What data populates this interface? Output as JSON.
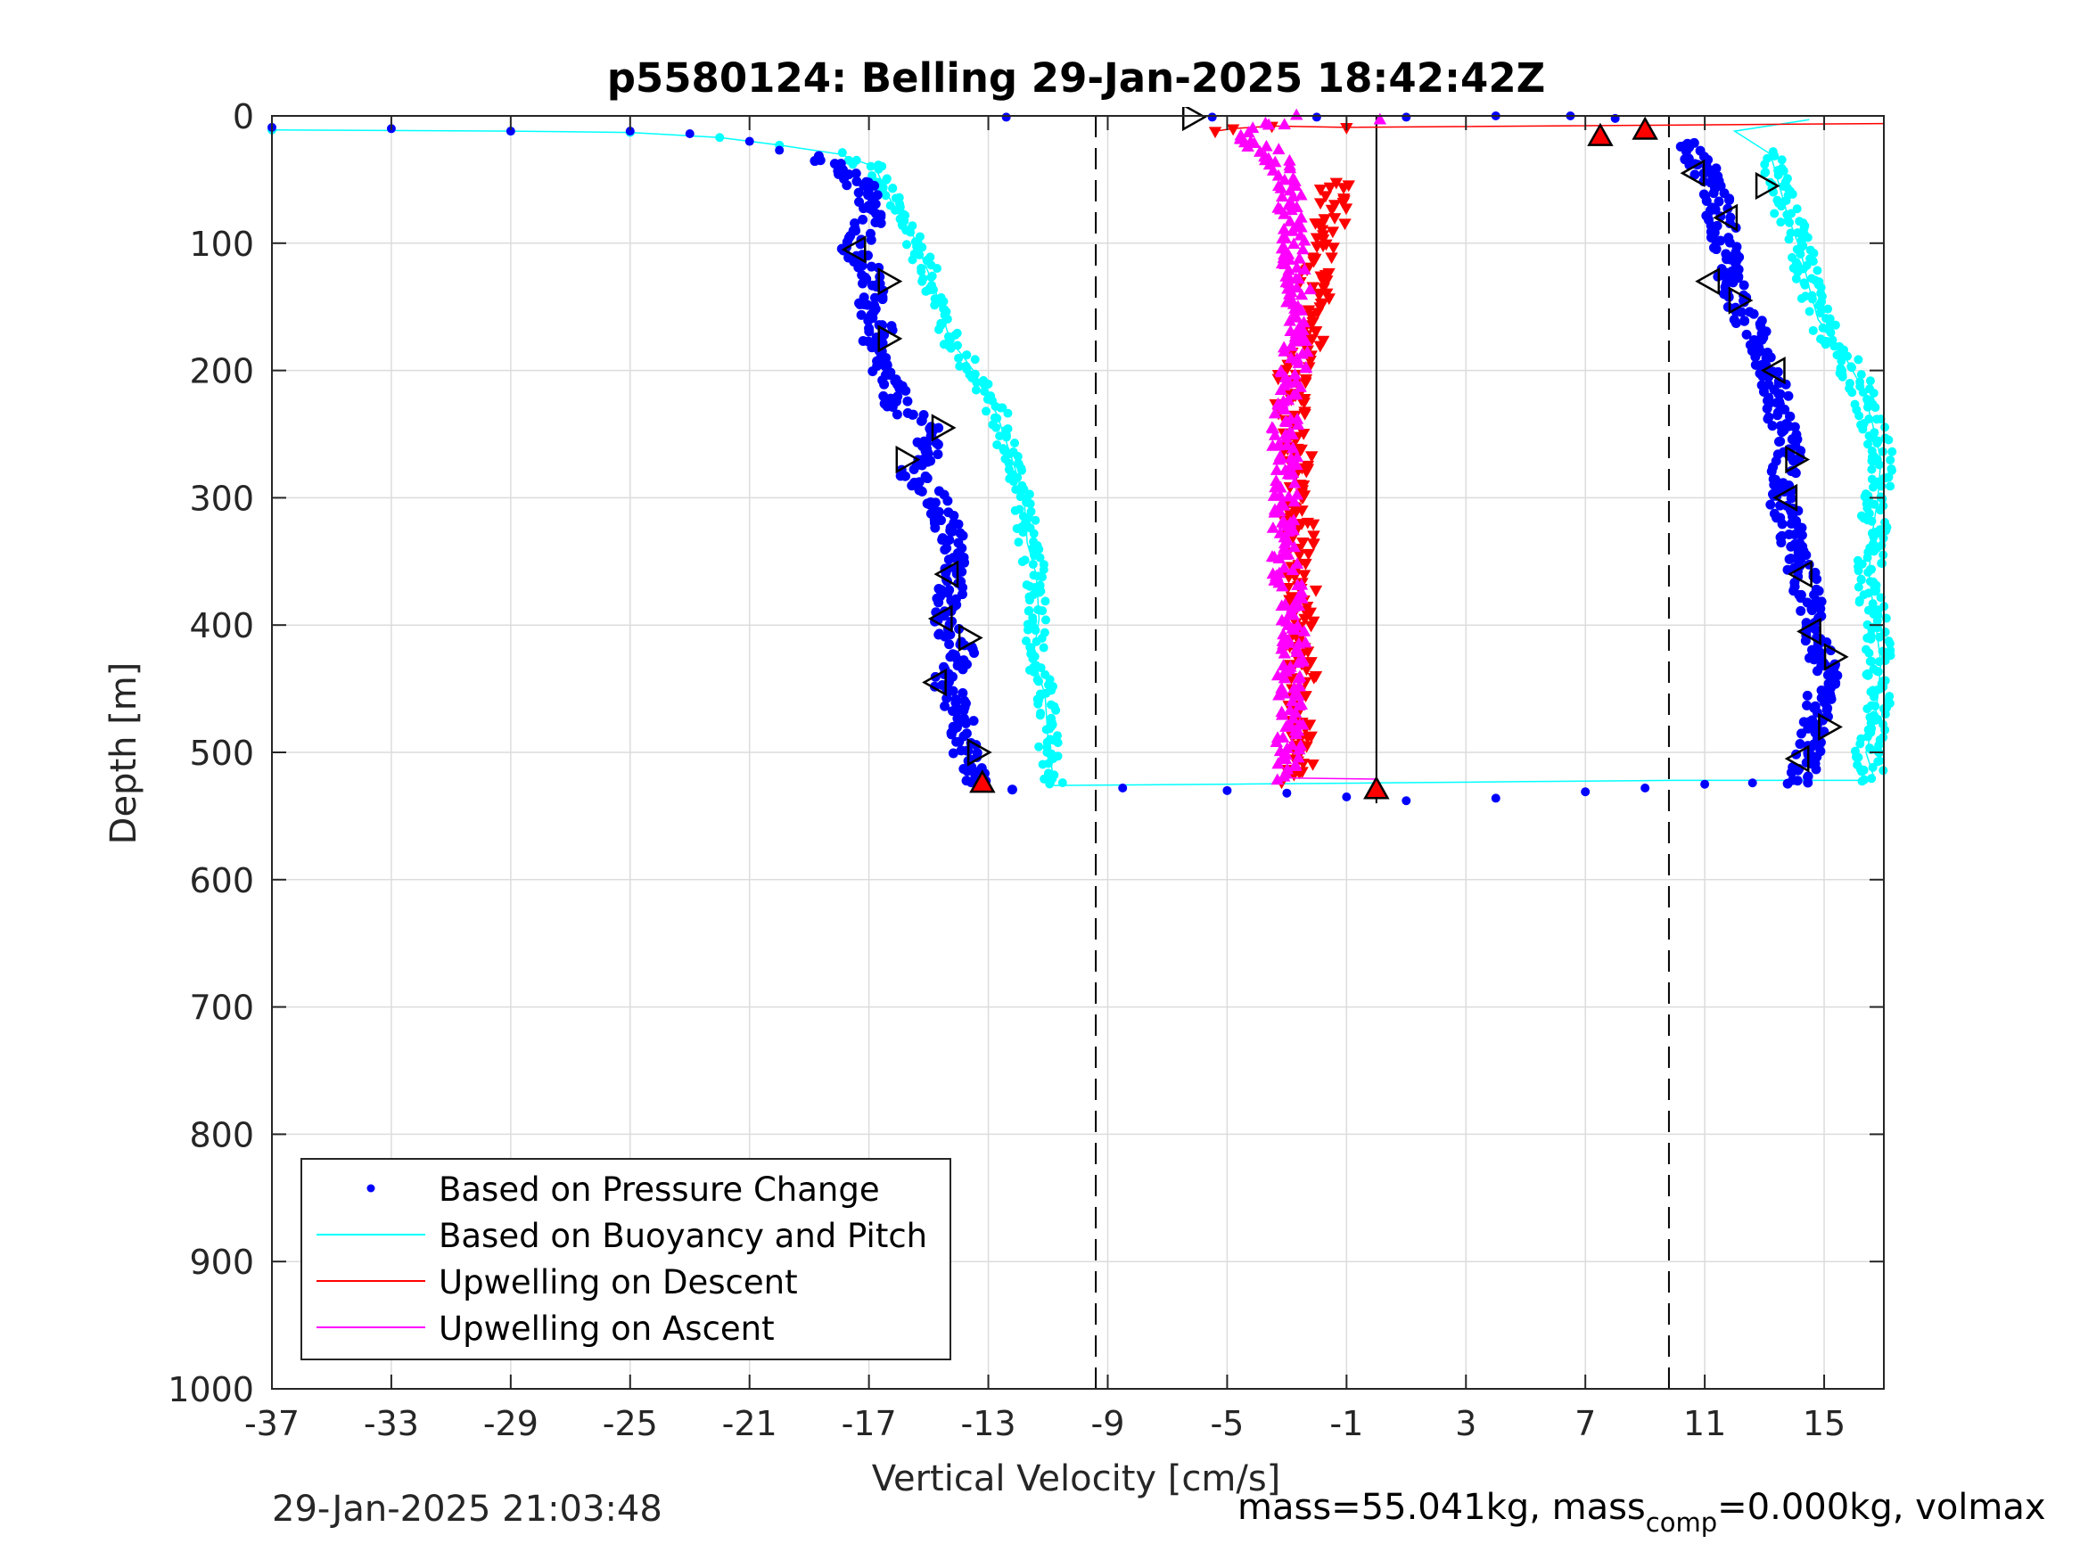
{
  "footer": {
    "timestamp": "29-Jan-2025 21:03:48",
    "mass_text": "mass=55.041kg, mass",
    "mass_sub": "comp",
    "mass_tail": "=0.000kg, volmax"
  },
  "chart_data": {
    "type": "scatter",
    "title": "p5580124: Belling 29-Jan-2025 18:42:42Z",
    "xlabel": "Vertical Velocity [cm/s]",
    "ylabel": "Depth [m]",
    "xlim": [
      -37,
      17
    ],
    "ylim": [
      0,
      1000
    ],
    "y_reversed": true,
    "grid": true,
    "legend_position": "bottom-left",
    "x_ticks": [
      -37,
      -33,
      -29,
      -25,
      -21,
      -17,
      -13,
      -9,
      -5,
      -1,
      3,
      7,
      11,
      15
    ],
    "x_tick_labels": [
      "-37",
      "-33",
      "-29",
      "-25",
      "-21",
      "-17",
      "-13",
      "-9",
      "-5",
      "-1",
      "3",
      "7",
      "11",
      "15"
    ],
    "y_ticks": [
      0,
      100,
      200,
      300,
      400,
      500,
      600,
      700,
      800,
      900,
      1000
    ],
    "y_tick_labels": [
      "0",
      "100",
      "200",
      "300",
      "400",
      "500",
      "600",
      "700",
      "800",
      "900",
      "1000"
    ],
    "reference_lines": {
      "dashed_x": [
        -9.4,
        9.8
      ],
      "solid_x": [
        0.0
      ],
      "colors": {
        "dashed": "#000000",
        "solid": "#000000"
      }
    },
    "series": [
      {
        "name": "Based on Pressure Change",
        "style": "dots",
        "color": "#0000ff",
        "descent": [
          [
            -37,
            9
          ],
          [
            -33,
            10
          ],
          [
            -29,
            12
          ],
          [
            -25,
            12
          ],
          [
            -23,
            14
          ],
          [
            -21,
            20
          ],
          [
            -20,
            27
          ],
          [
            -19,
            33
          ],
          [
            -18,
            40
          ],
          [
            -17.2,
            55
          ],
          [
            -16.9,
            80
          ],
          [
            -17.5,
            105
          ],
          [
            -16.9,
            125
          ],
          [
            -17.0,
            150
          ],
          [
            -16.6,
            170
          ],
          [
            -17.0,
            180
          ],
          [
            -16.3,
            210
          ],
          [
            -16.0,
            230
          ],
          [
            -15.0,
            245
          ],
          [
            -14.9,
            265
          ],
          [
            -15.7,
            280
          ],
          [
            -14.8,
            300
          ],
          [
            -14.4,
            320
          ],
          [
            -14.1,
            345
          ],
          [
            -14.3,
            375
          ],
          [
            -14.5,
            395
          ],
          [
            -13.9,
            420
          ],
          [
            -14.5,
            445
          ],
          [
            -13.8,
            470
          ],
          [
            -13.8,
            500
          ],
          [
            -13.3,
            525
          ],
          [
            -12.5,
            528
          ]
        ],
        "ascent": [
          [
            14.0,
            525
          ],
          [
            14.4,
            510
          ],
          [
            14.6,
            485
          ],
          [
            14.8,
            460
          ],
          [
            15.0,
            440
          ],
          [
            14.8,
            415
          ],
          [
            14.6,
            390
          ],
          [
            14.4,
            370
          ],
          [
            14.0,
            345
          ],
          [
            13.8,
            320
          ],
          [
            13.5,
            300
          ],
          [
            13.7,
            275
          ],
          [
            13.9,
            255
          ],
          [
            13.5,
            235
          ],
          [
            13.3,
            210
          ],
          [
            13.1,
            190
          ],
          [
            12.7,
            170
          ],
          [
            12.1,
            150
          ],
          [
            11.9,
            130
          ],
          [
            11.8,
            110
          ],
          [
            11.6,
            90
          ],
          [
            11.4,
            70
          ],
          [
            11.3,
            50
          ],
          [
            10.8,
            35
          ],
          [
            10.3,
            20
          ],
          [
            9.9,
            10
          ],
          [
            9.0,
            5
          ]
        ],
        "bottom_turn": [
          [
            -8.5,
            528
          ],
          [
            -5,
            530
          ],
          [
            -3,
            532
          ],
          [
            -1,
            535
          ],
          [
            1,
            538
          ],
          [
            4,
            536
          ],
          [
            7,
            531
          ],
          [
            9,
            528
          ],
          [
            11,
            525
          ],
          [
            12.6,
            524
          ]
        ],
        "surface": [
          [
            -12.4,
            1
          ],
          [
            -5.5,
            1
          ],
          [
            -2,
            1
          ],
          [
            1,
            1
          ],
          [
            4,
            0
          ],
          [
            6.5,
            0
          ],
          [
            8,
            2
          ]
        ]
      },
      {
        "name": "Based on Buoyancy and Pitch",
        "style": "line+dots",
        "color": "#00ffff",
        "descent": [
          [
            -37,
            11
          ],
          [
            -29,
            12
          ],
          [
            -25,
            13
          ],
          [
            -22,
            17
          ],
          [
            -20,
            23
          ],
          [
            -18,
            30
          ],
          [
            -16.8,
            40
          ],
          [
            -16.2,
            70
          ],
          [
            -15.5,
            95
          ],
          [
            -14.8,
            135
          ],
          [
            -14.3,
            175
          ],
          [
            -13.5,
            200
          ],
          [
            -12.7,
            235
          ],
          [
            -12.2,
            270
          ],
          [
            -11.8,
            300
          ],
          [
            -11.7,
            335
          ],
          [
            -11.4,
            360
          ],
          [
            -11.3,
            395
          ],
          [
            -11.5,
            425
          ],
          [
            -11.1,
            455
          ],
          [
            -11.0,
            490
          ],
          [
            -10.8,
            525
          ]
        ],
        "ascent": [
          [
            16.7,
            522
          ],
          [
            16.4,
            500
          ],
          [
            16.7,
            475
          ],
          [
            16.8,
            455
          ],
          [
            16.9,
            430
          ],
          [
            16.7,
            395
          ],
          [
            16.5,
            360
          ],
          [
            16.6,
            330
          ],
          [
            16.8,
            300
          ],
          [
            16.9,
            270
          ],
          [
            16.6,
            240
          ],
          [
            16.3,
            215
          ],
          [
            15.6,
            185
          ],
          [
            14.8,
            160
          ],
          [
            14.5,
            135
          ],
          [
            14.2,
            105
          ],
          [
            13.8,
            80
          ],
          [
            13.5,
            55
          ],
          [
            13.2,
            30
          ],
          [
            12.0,
            12
          ],
          [
            14.5,
            3
          ]
        ],
        "bottom_turn": [
          [
            -10.8,
            526
          ],
          [
            -5,
            525
          ],
          [
            0,
            524
          ],
          [
            5,
            523
          ],
          [
            10,
            522
          ],
          [
            16.7,
            522
          ]
        ]
      },
      {
        "name": "Upwelling on Descent",
        "style": "line+down-triangles",
        "color": "#ff0000",
        "values": [
          [
            -5.4,
            12
          ],
          [
            -4.8,
            10
          ],
          [
            -3.5,
            8
          ],
          [
            -1.0,
            9
          ],
          [
            17,
            6
          ],
          [
            -1.4,
            50
          ],
          [
            -1.5,
            80
          ],
          [
            -2.0,
            110
          ],
          [
            -2.1,
            140
          ],
          [
            -2.0,
            170
          ],
          [
            -2.8,
            200
          ],
          [
            -2.9,
            230
          ],
          [
            -2.7,
            260
          ],
          [
            -2.6,
            290
          ],
          [
            -2.6,
            320
          ],
          [
            -2.5,
            350
          ],
          [
            -2.5,
            380
          ],
          [
            -2.6,
            410
          ],
          [
            -2.5,
            440
          ],
          [
            -2.8,
            470
          ],
          [
            -2.5,
            500
          ],
          [
            -2.7,
            520
          ]
        ]
      },
      {
        "name": "Upwelling on Ascent",
        "style": "line+up-triangles",
        "color": "#ff00ff",
        "values": [
          [
            -3.2,
            520
          ],
          [
            -3.0,
            500
          ],
          [
            -2.8,
            470
          ],
          [
            -3.0,
            440
          ],
          [
            -2.7,
            410
          ],
          [
            -2.9,
            380
          ],
          [
            -3.1,
            350
          ],
          [
            -3.2,
            320
          ],
          [
            -3.0,
            290
          ],
          [
            -3.1,
            260
          ],
          [
            -3.0,
            230
          ],
          [
            -2.8,
            200
          ],
          [
            -2.6,
            170
          ],
          [
            -2.6,
            140
          ],
          [
            -2.8,
            110
          ],
          [
            -2.9,
            80
          ],
          [
            -3.0,
            50
          ],
          [
            -3.5,
            30
          ],
          [
            -4.2,
            15
          ],
          [
            -3.8,
            5
          ],
          [
            -2.0,
            2
          ],
          [
            -0.2,
            1
          ]
        ]
      }
    ],
    "markers": {
      "open_triangles_right": [
        [
          -16.4,
          130
        ],
        [
          -16.4,
          175
        ],
        [
          -15.8,
          270
        ],
        [
          -14.6,
          245
        ],
        [
          -13.7,
          410
        ],
        [
          -13.4,
          500
        ],
        [
          13.0,
          55
        ],
        [
          12.1,
          145
        ],
        [
          14.0,
          270
        ],
        [
          15.1,
          480
        ],
        [
          15.3,
          425
        ],
        [
          -6.2,
          1
        ]
      ],
      "open_triangles_left": [
        [
          -17.4,
          105
        ],
        [
          -14.7,
          445
        ],
        [
          -14.5,
          395
        ],
        [
          -14.3,
          360
        ],
        [
          13.8,
          300
        ],
        [
          13.4,
          200
        ],
        [
          14.3,
          360
        ],
        [
          14.2,
          505
        ],
        [
          14.6,
          405
        ],
        [
          11.2,
          130
        ],
        [
          10.7,
          45
        ],
        [
          11.8,
          80
        ]
      ],
      "red_up_triangles": [
        [
          7.5,
          17
        ],
        [
          9.0,
          12
        ],
        [
          -13.2,
          525
        ],
        [
          0.0,
          530
        ]
      ],
      "colors": {
        "open": "#000000",
        "red": "#ff0000"
      }
    },
    "legend": [
      "Based on Pressure Change",
      "Based on Buoyancy and Pitch",
      "Upwelling on Descent",
      "Upwelling on Ascent"
    ]
  }
}
